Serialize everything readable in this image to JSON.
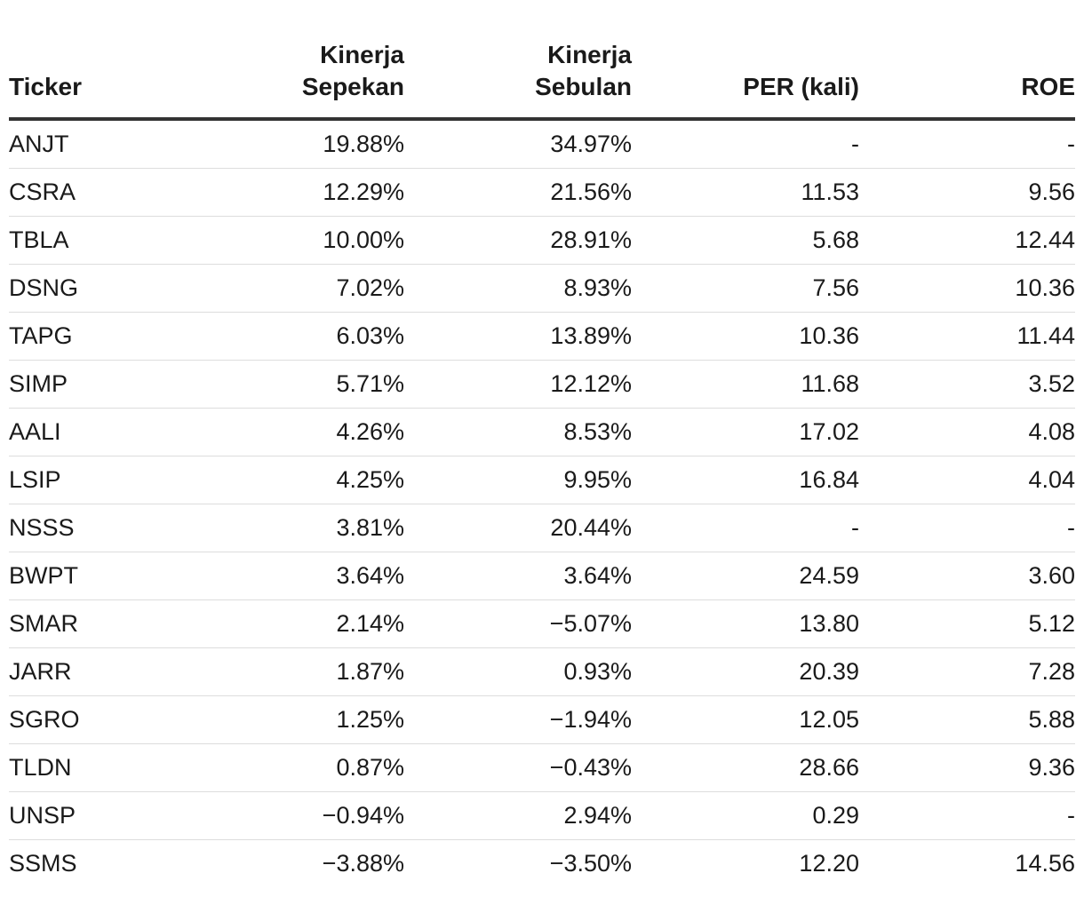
{
  "table": {
    "headers": {
      "ticker": "Ticker",
      "week_line1": "Kinerja",
      "week_line2": "Sepekan",
      "month_line1": "Kinerja",
      "month_line2": "Sebulan",
      "per": "PER (kali)",
      "roe": "ROE"
    },
    "rows": [
      {
        "ticker": "ANJT",
        "week": "19.88%",
        "month": "34.97%",
        "per": "-",
        "roe": "-"
      },
      {
        "ticker": "CSRA",
        "week": "12.29%",
        "month": "21.56%",
        "per": "11.53",
        "roe": "9.56"
      },
      {
        "ticker": "TBLA",
        "week": "10.00%",
        "month": "28.91%",
        "per": "5.68",
        "roe": "12.44"
      },
      {
        "ticker": "DSNG",
        "week": "7.02%",
        "month": "8.93%",
        "per": "7.56",
        "roe": "10.36"
      },
      {
        "ticker": "TAPG",
        "week": "6.03%",
        "month": "13.89%",
        "per": "10.36",
        "roe": "11.44"
      },
      {
        "ticker": "SIMP",
        "week": "5.71%",
        "month": "12.12%",
        "per": "11.68",
        "roe": "3.52"
      },
      {
        "ticker": "AALI",
        "week": "4.26%",
        "month": "8.53%",
        "per": "17.02",
        "roe": "4.08"
      },
      {
        "ticker": "LSIP",
        "week": "4.25%",
        "month": "9.95%",
        "per": "16.84",
        "roe": "4.04"
      },
      {
        "ticker": "NSSS",
        "week": "3.81%",
        "month": "20.44%",
        "per": "-",
        "roe": "-"
      },
      {
        "ticker": "BWPT",
        "week": "3.64%",
        "month": "3.64%",
        "per": "24.59",
        "roe": "3.60"
      },
      {
        "ticker": "SMAR",
        "week": "2.14%",
        "month": "−5.07%",
        "per": "13.80",
        "roe": "5.12"
      },
      {
        "ticker": "JARR",
        "week": "1.87%",
        "month": "0.93%",
        "per": "20.39",
        "roe": "7.28"
      },
      {
        "ticker": "SGRO",
        "week": "1.25%",
        "month": "−1.94%",
        "per": "12.05",
        "roe": "5.88"
      },
      {
        "ticker": "TLDN",
        "week": "0.87%",
        "month": "−0.43%",
        "per": "28.66",
        "roe": "9.36"
      },
      {
        "ticker": "UNSP",
        "week": "−0.94%",
        "month": "2.94%",
        "per": "0.29",
        "roe": "-"
      },
      {
        "ticker": "SSMS",
        "week": "−3.88%",
        "month": "−3.50%",
        "per": "12.20",
        "roe": "14.56"
      }
    ]
  }
}
